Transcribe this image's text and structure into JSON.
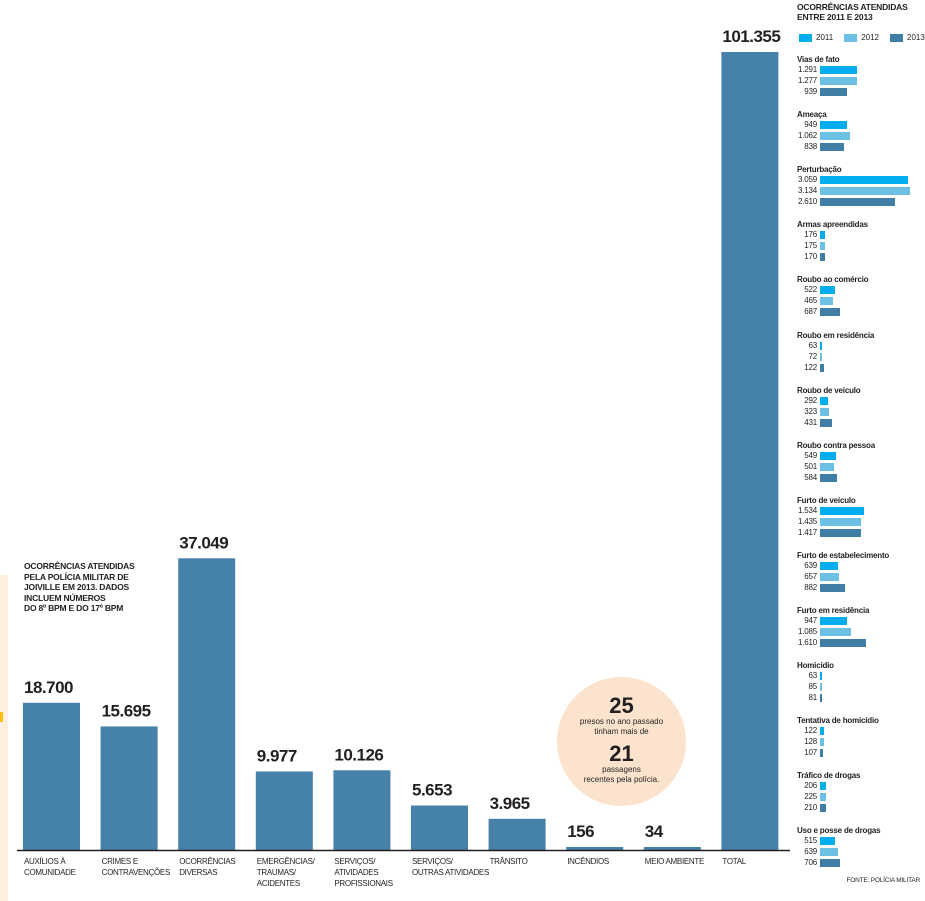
{
  "colors": {
    "main_bar": "#4581a8",
    "y2011": "#00aeef",
    "y2012": "#6cc0e3",
    "y2013": "#417ea6",
    "circle_bg": "#fbe3cd",
    "axis": "#231f20"
  },
  "chart_data": [
    {
      "type": "bar",
      "title": "OCORRÊNCIAS ATENDIDAS PELA POLÍCIA MILITAR DE JOIVILLE EM 2013. DADOS INCLUEM NÚMEROS DO 8º BPM E DO 17º BPM",
      "categories": [
        [
          "AUXÍLIOS À",
          "COMUNIDADE"
        ],
        [
          "CRIMES E",
          "CONTRAVENÇÕES"
        ],
        [
          "OCORRÊNCIAS",
          "DIVERSAS"
        ],
        [
          "EMERGÊNCIAS/",
          "TRAUMAS/",
          "ACIDENTES"
        ],
        [
          "SERVIÇOS/",
          "ATIVIDADES",
          "PROFISSIONAIS"
        ],
        [
          "SERVIÇOS/",
          "OUTRAS ATIVIDADES"
        ],
        [
          "TRÂNSITO"
        ],
        [
          "INCÊNDIOS"
        ],
        [
          "MEIO AMBIENTE"
        ],
        [
          "TOTAL"
        ]
      ],
      "values": [
        18700,
        15695,
        37049,
        9977,
        10126,
        5653,
        3965,
        156,
        34,
        101355
      ],
      "value_labels": [
        "18.700",
        "15.695",
        "37.049",
        "9.977",
        "10.126",
        "5.653",
        "3.965",
        "156",
        "34",
        "101.355"
      ],
      "xlabel": "",
      "ylabel": "",
      "ylim": [
        0,
        101355
      ],
      "grid": false
    },
    {
      "type": "bar",
      "orientation": "horizontal",
      "title": "OCORRÊNCIAS ATENDIDAS ENTRE 2011 E 2013",
      "legend": [
        "2011",
        "2012",
        "2013"
      ],
      "legend_position": "top-left",
      "categories": [
        "Vias de fato",
        "Ameaça",
        "Perturbação",
        "Armas apreendidas",
        "Roubo ao comércio",
        "Roubo em residência",
        "Roubo de veículo",
        "Roubo contra pessoa",
        "Furto de veículo",
        "Furto de estabelecimento",
        "Furto em residência",
        "Homicídio",
        "Tentativa de homicídio",
        "Tráfico de drogas",
        "Uso e posse de drogas"
      ],
      "series": [
        {
          "name": "2011",
          "values": [
            1291,
            949,
            3059,
            176,
            522,
            63,
            292,
            549,
            1534,
            639,
            947,
            63,
            122,
            206,
            515
          ]
        },
        {
          "name": "2012",
          "values": [
            1277,
            1062,
            3134,
            175,
            465,
            72,
            323,
            501,
            1435,
            657,
            1085,
            85,
            128,
            225,
            639
          ]
        },
        {
          "name": "2013",
          "values": [
            939,
            838,
            2610,
            170,
            687,
            122,
            431,
            584,
            1417,
            882,
            1610,
            81,
            107,
            210,
            706
          ]
        }
      ],
      "labels": [
        [
          "1.291",
          "1.277",
          "939"
        ],
        [
          "949",
          "1.062",
          "838"
        ],
        [
          "3.059",
          "3.134",
          "2.610"
        ],
        [
          "176",
          "175",
          "170"
        ],
        [
          "522",
          "465",
          "687"
        ],
        [
          "63",
          "72",
          "122"
        ],
        [
          "292",
          "323",
          "431"
        ],
        [
          "549",
          "501",
          "584"
        ],
        [
          "1.534",
          "1.435",
          "1.417"
        ],
        [
          "639",
          "657",
          "882"
        ],
        [
          "947",
          "1.085",
          "1.610"
        ],
        [
          "63",
          "85",
          "81"
        ],
        [
          "122",
          "128",
          "107"
        ],
        [
          "206",
          "225",
          "210"
        ],
        [
          "515",
          "639",
          "706"
        ]
      ],
      "xlim": [
        0,
        3134
      ]
    }
  ],
  "main_note": [
    "OCORRÊNCIAS ATENDIDAS",
    "PELA POLÍCIA MILITAR DE",
    "JOIVILLE EM 2013. DADOS",
    "INCLUEM NÚMEROS",
    "DO 8º BPM E DO 17º BPM"
  ],
  "circle_note": {
    "number1": "25",
    "text1a": "presos no ano passado",
    "text1b": "tinham mais de",
    "number2": "21",
    "text2a": "passagens",
    "text2b": "recentes pela polícia."
  },
  "side": {
    "title_line1": "OCORRÊNCIAS ATENDIDAS",
    "title_line2": "ENTRE 2011 E 2013",
    "legend": [
      "2011",
      "2012",
      "2013"
    ]
  },
  "source": "FONTE: POLÍCIA MILITAR"
}
